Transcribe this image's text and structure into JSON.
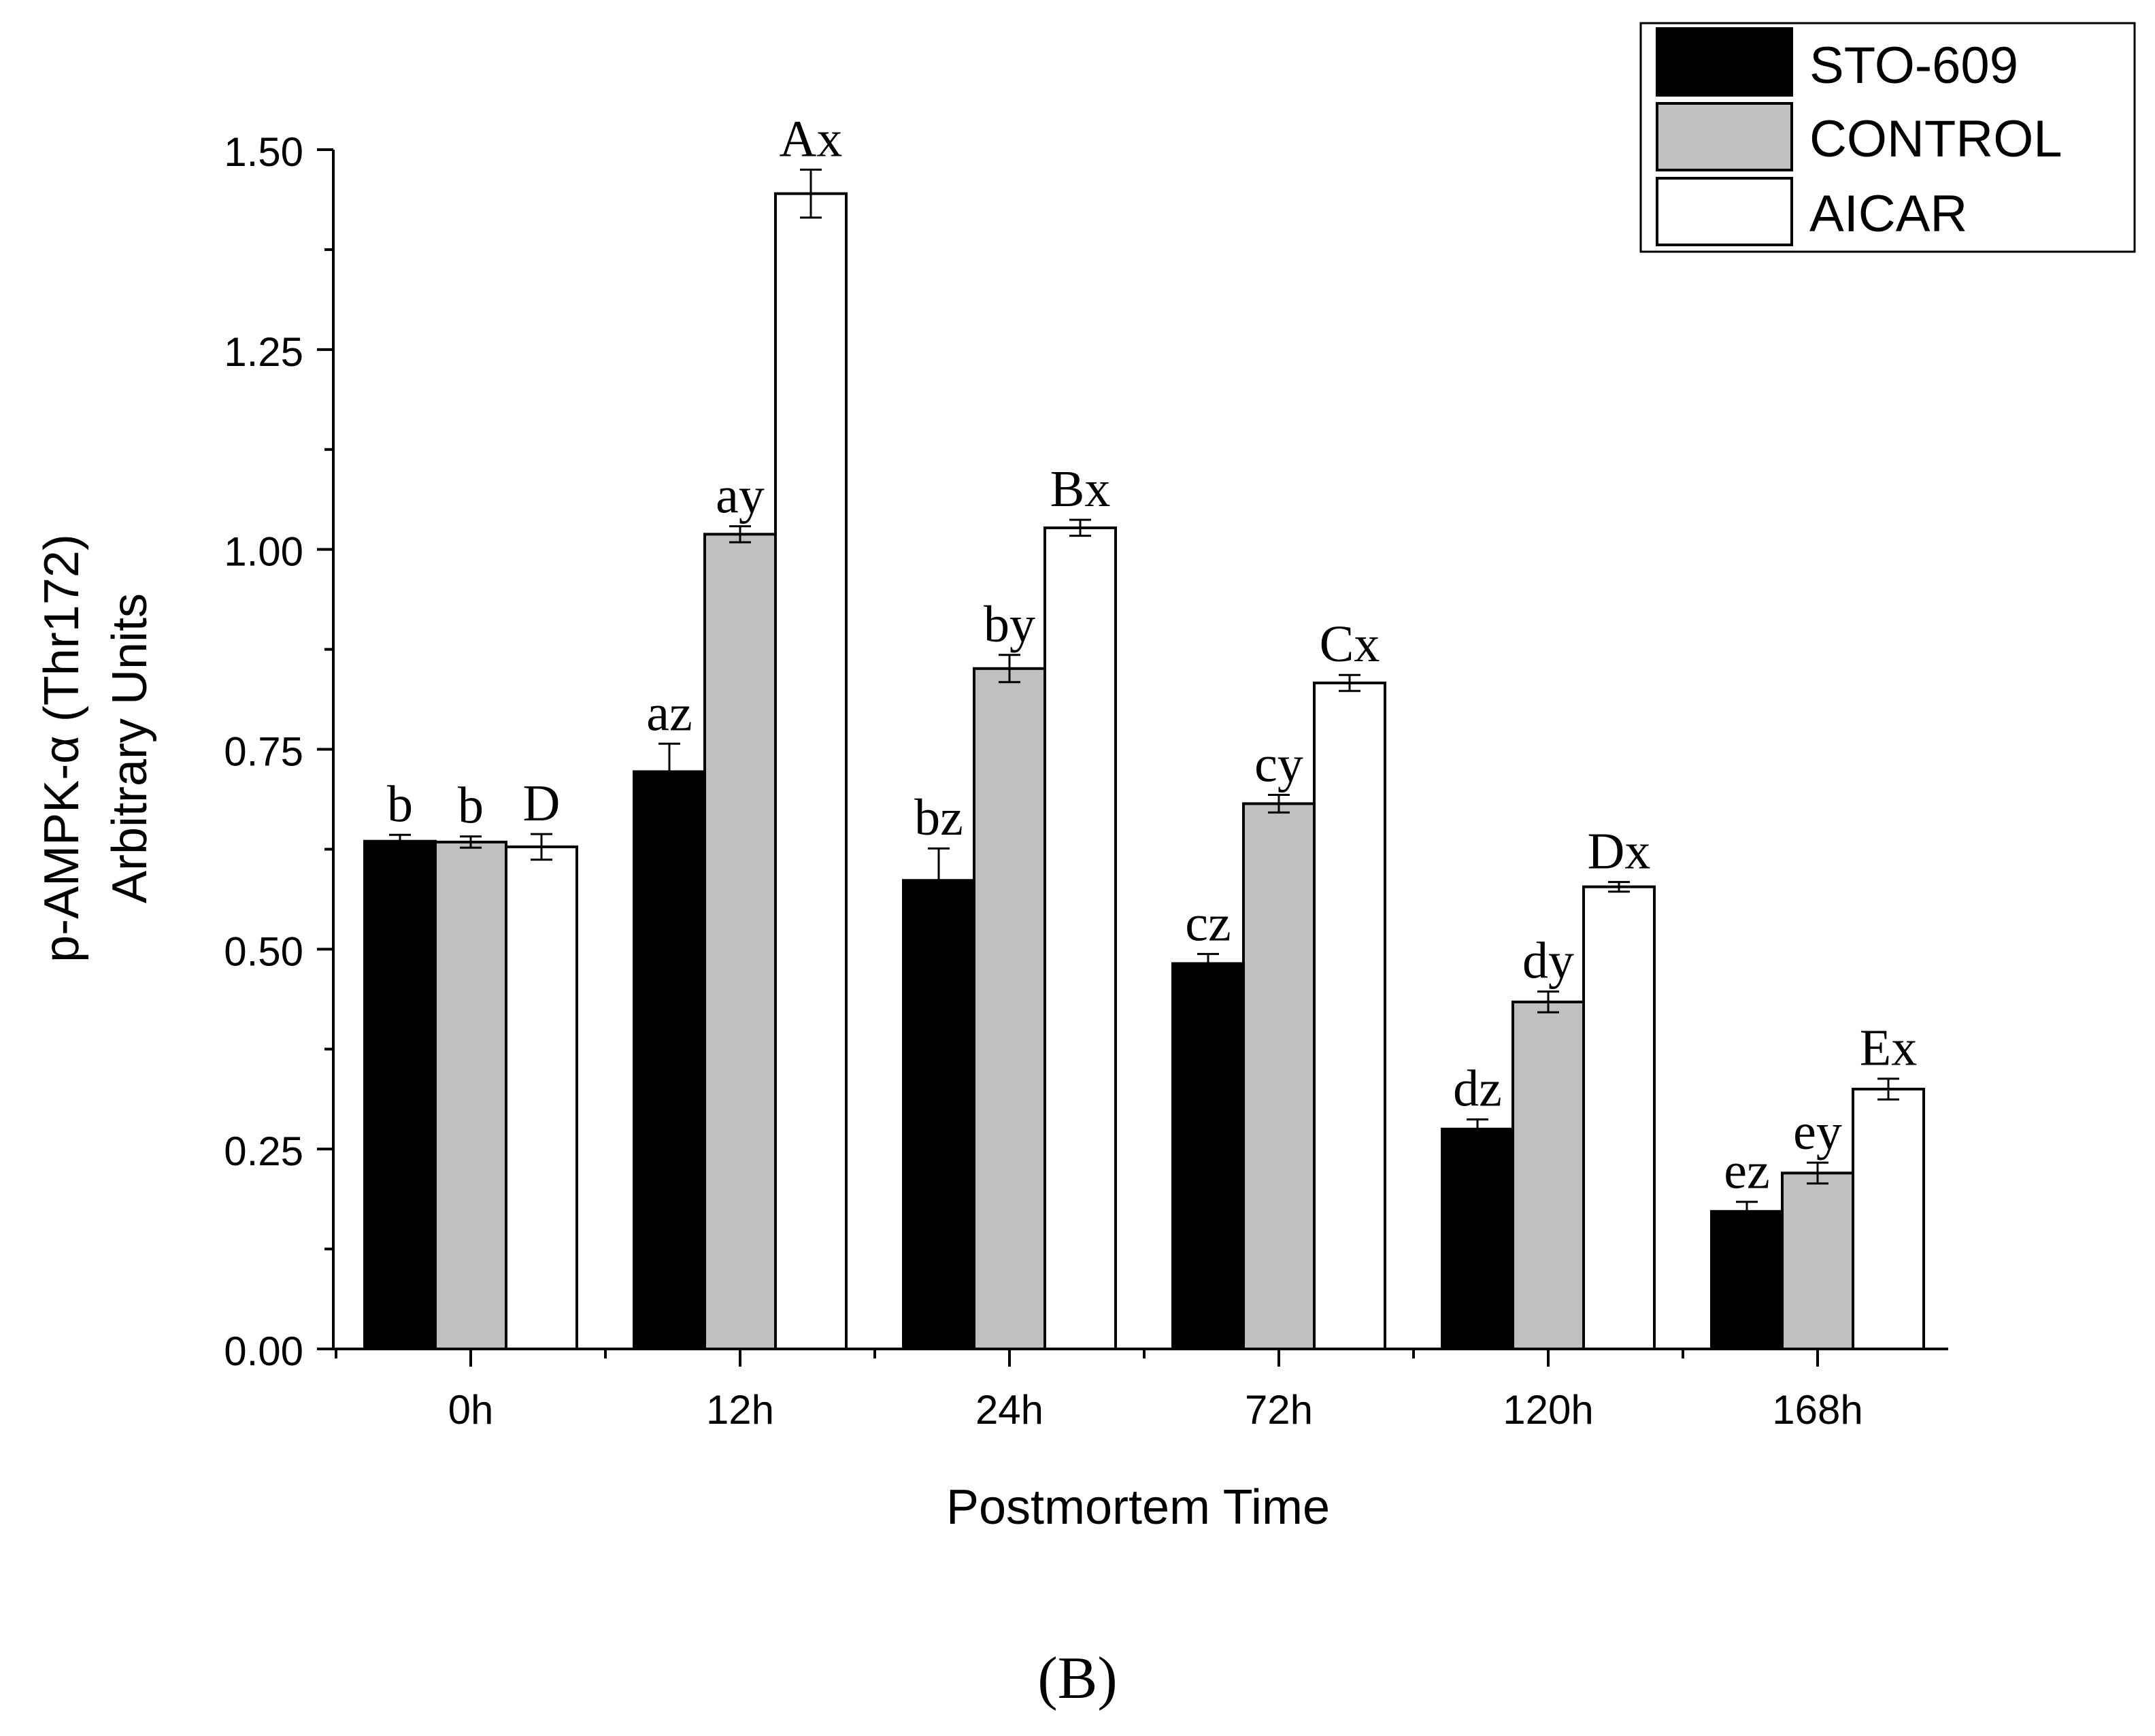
{
  "chart_data": {
    "type": "bar",
    "title": "",
    "panel_label": "(B)",
    "xlabel": "Postmortem Time",
    "ylabel": "p-AMPK-α (Thr172)",
    "ylabel_line2": "Arbitrary Units",
    "ylim": [
      0,
      1.5
    ],
    "y_ticks": [
      "0.00",
      "0.25",
      "0.50",
      "0.75",
      "1.00",
      "1.25",
      "1.50"
    ],
    "y_tick_values": [
      0,
      0.25,
      0.5,
      0.75,
      1.0,
      1.25,
      1.5
    ],
    "categories": [
      "0h",
      "12h",
      "24h",
      "72h",
      "120h",
      "168h"
    ],
    "legend_position": "top-right",
    "series": [
      {
        "name": "STO-609",
        "color": "#000000",
        "values": [
          0.635,
          0.722,
          0.586,
          0.482,
          0.275,
          0.172
        ],
        "errors": [
          0.008,
          0.035,
          0.04,
          0.012,
          0.012,
          0.012
        ],
        "labels": [
          "b",
          "az",
          "bz",
          "cz",
          "dz",
          "ez"
        ]
      },
      {
        "name": "CONTROL",
        "color": "#c0c0c0",
        "values": [
          0.634,
          1.019,
          0.851,
          0.682,
          0.434,
          0.22
        ],
        "errors": [
          0.007,
          0.01,
          0.017,
          0.011,
          0.013,
          0.013
        ],
        "labels": [
          "b",
          "ay",
          "by",
          "cy",
          "dy",
          "ey"
        ]
      },
      {
        "name": "AICAR",
        "color": "#ffffff",
        "values": [
          0.628,
          1.445,
          1.027,
          0.833,
          0.578,
          0.325
        ],
        "errors": [
          0.016,
          0.03,
          0.01,
          0.01,
          0.006,
          0.013
        ],
        "labels": [
          "D",
          "Ax",
          "Bx",
          "Cx",
          "Dx",
          "Ex"
        ]
      }
    ]
  }
}
